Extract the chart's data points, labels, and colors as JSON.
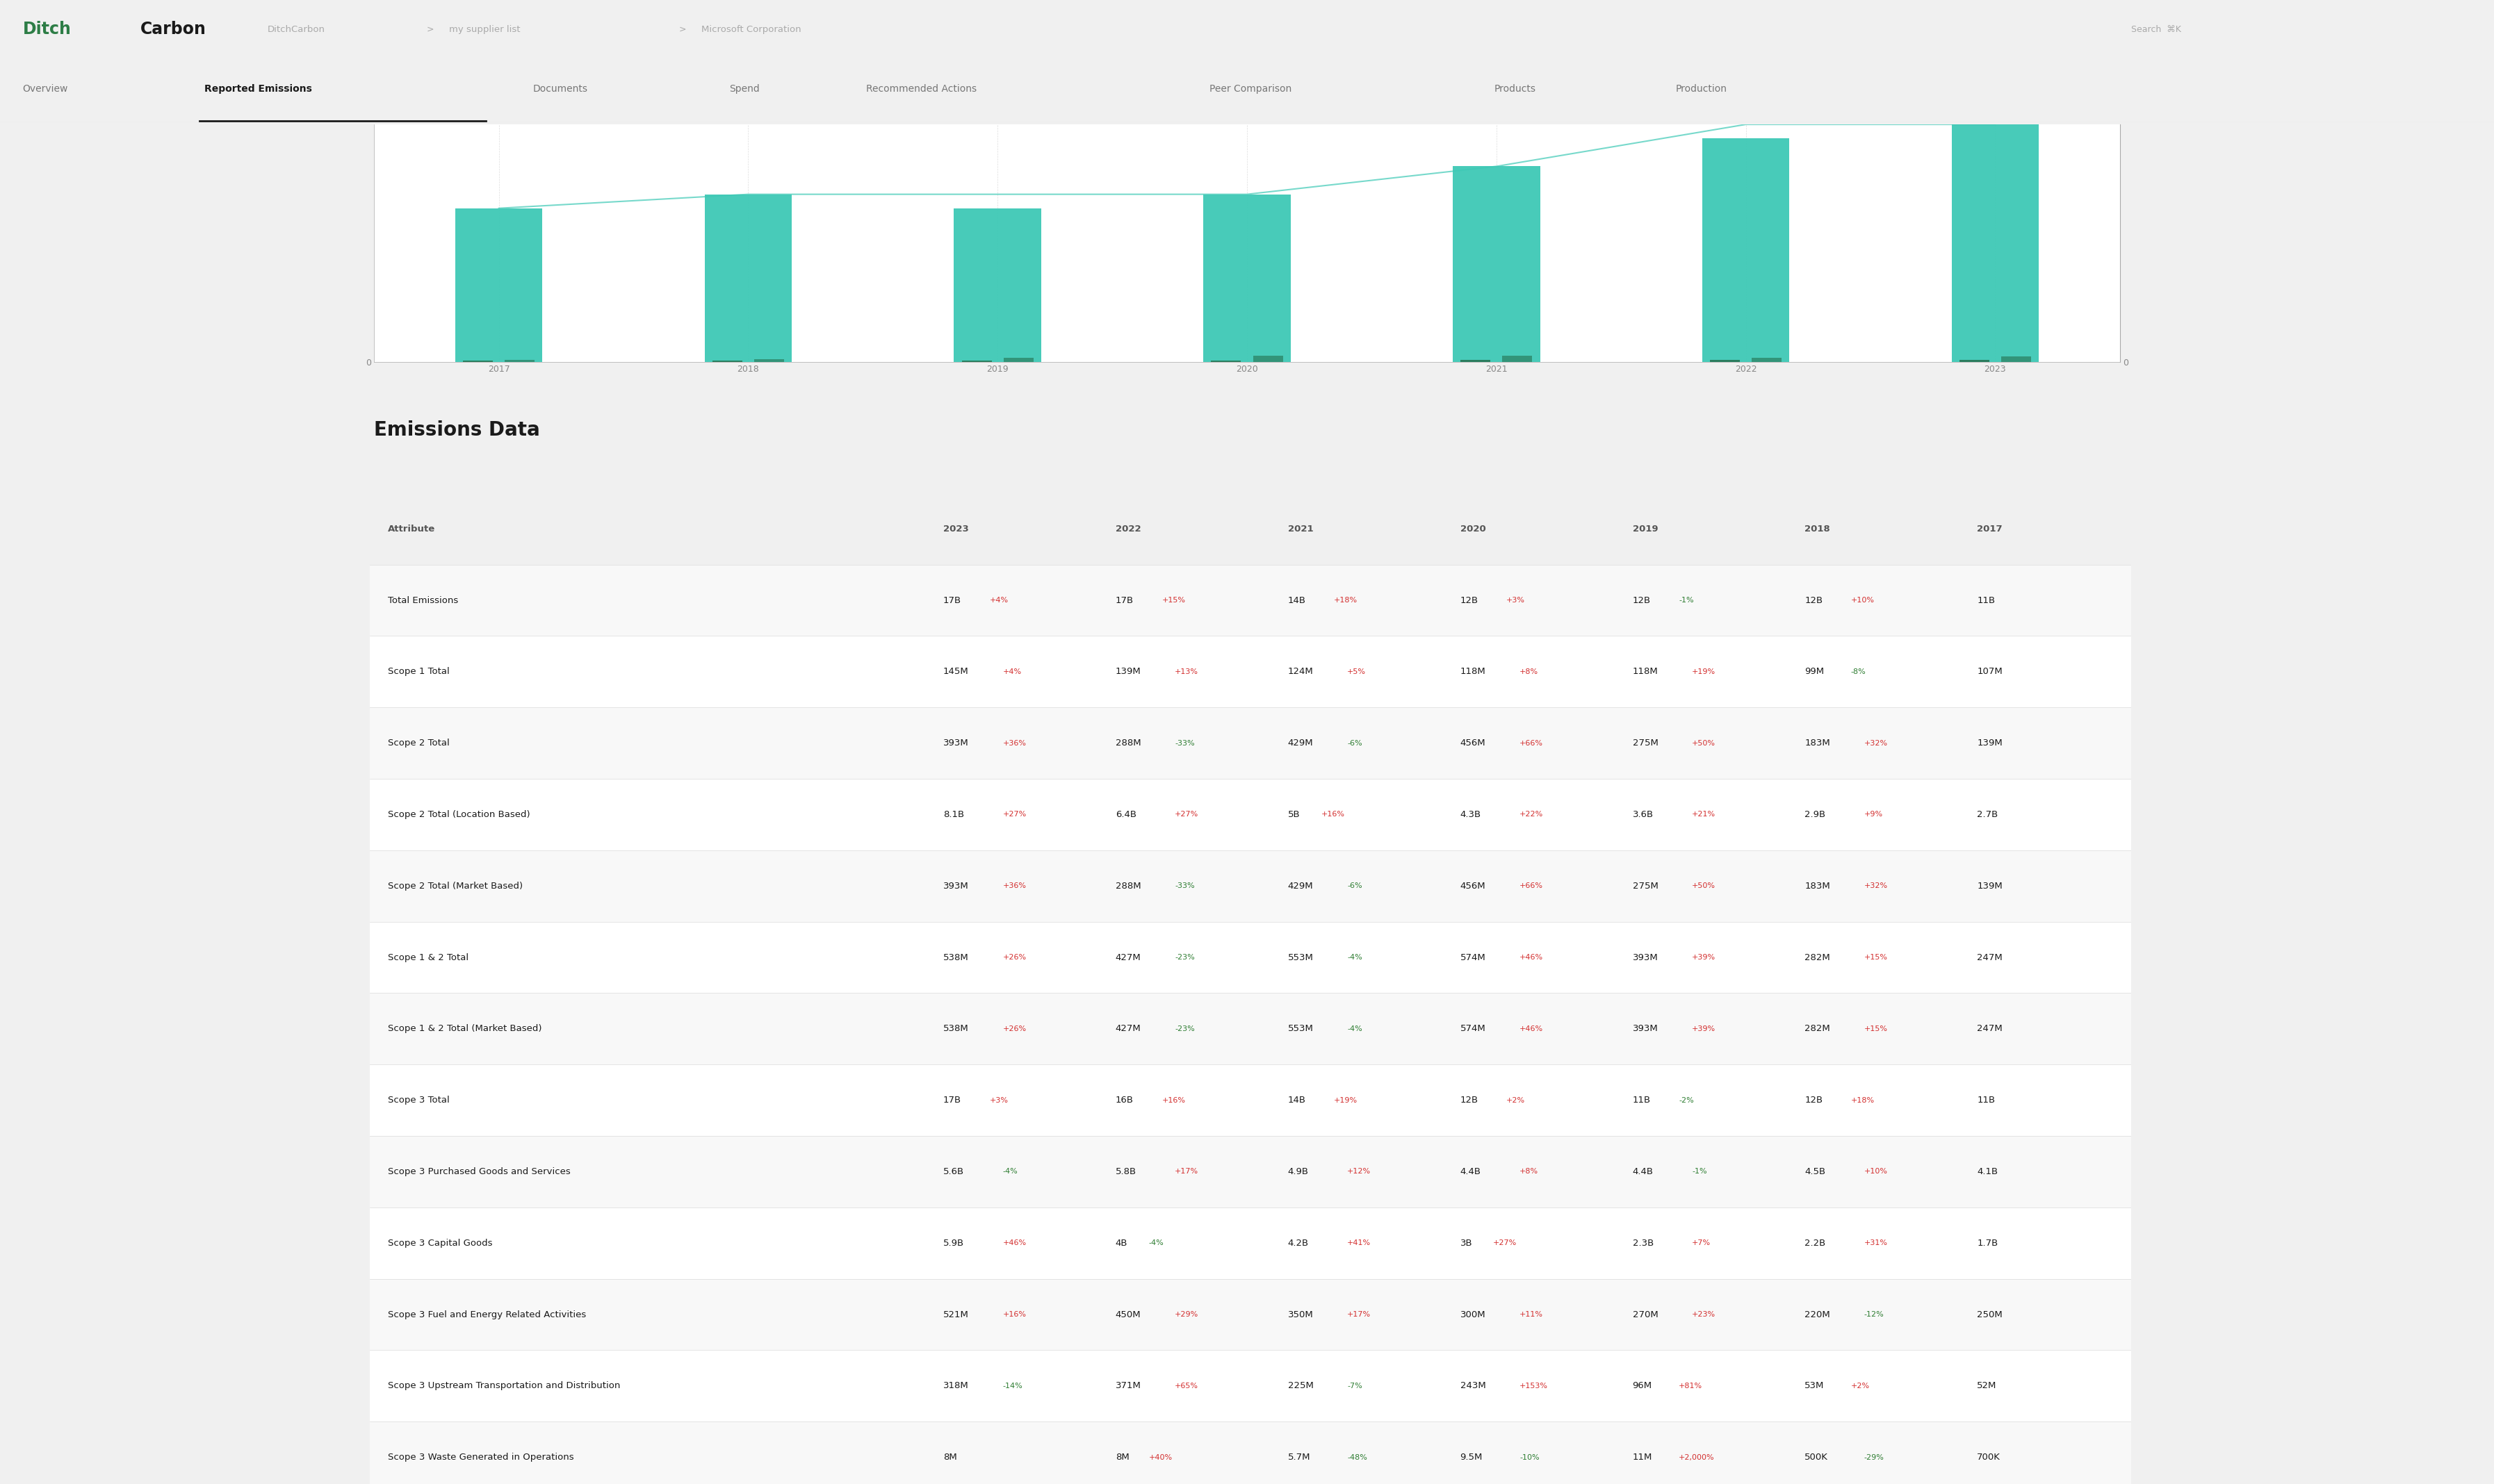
{
  "title": "Emissions Data",
  "nav_items": [
    "Overview",
    "Reported Emissions",
    "Documents",
    "Spend",
    "Recommended Actions",
    "Peer Comparison",
    "Products",
    "Production"
  ],
  "breadcrumb": [
    "DitchCarbon",
    "my supplier list",
    "Microsoft Corporation"
  ],
  "columns": [
    "Attribute",
    "2023",
    "2022",
    "2021",
    "2020",
    "2019",
    "2018",
    "2017"
  ],
  "rows": [
    {
      "attribute": "Total Emissions",
      "2023": "17B",
      "2023_delta": "+4%",
      "2023_pos": true,
      "2022": "17B",
      "2022_delta": "+15%",
      "2022_pos": true,
      "2021": "14B",
      "2021_delta": "+18%",
      "2021_pos": true,
      "2020": "12B",
      "2020_delta": "+3%",
      "2020_pos": true,
      "2019": "12B",
      "2019_delta": "-1%",
      "2019_pos": false,
      "2018": "12B",
      "2018_delta": "+10%",
      "2018_pos": true,
      "2017": "11B",
      "2017_delta": "",
      "2017_pos": null
    },
    {
      "attribute": "Scope 1 Total",
      "2023": "145M",
      "2023_delta": "+4%",
      "2023_pos": true,
      "2022": "139M",
      "2022_delta": "+13%",
      "2022_pos": true,
      "2021": "124M",
      "2021_delta": "+5%",
      "2021_pos": true,
      "2020": "118M",
      "2020_delta": "+8%",
      "2020_pos": true,
      "2019": "118M",
      "2019_delta": "+19%",
      "2019_pos": true,
      "2018": "99M",
      "2018_delta": "-8%",
      "2018_pos": false,
      "2017": "107M",
      "2017_delta": "",
      "2017_pos": null
    },
    {
      "attribute": "Scope 2 Total",
      "2023": "393M",
      "2023_delta": "+36%",
      "2023_pos": true,
      "2022": "288M",
      "2022_delta": "-33%",
      "2022_pos": false,
      "2021": "429M",
      "2021_delta": "-6%",
      "2021_pos": false,
      "2020": "456M",
      "2020_delta": "+66%",
      "2020_pos": true,
      "2019": "275M",
      "2019_delta": "+50%",
      "2019_pos": true,
      "2018": "183M",
      "2018_delta": "+32%",
      "2018_pos": true,
      "2017": "139M",
      "2017_delta": "",
      "2017_pos": null
    },
    {
      "attribute": "Scope 2 Total (Location Based)",
      "2023": "8.1B",
      "2023_delta": "+27%",
      "2023_pos": true,
      "2022": "6.4B",
      "2022_delta": "+27%",
      "2022_pos": true,
      "2021": "5B",
      "2021_delta": "+16%",
      "2021_pos": true,
      "2020": "4.3B",
      "2020_delta": "+22%",
      "2020_pos": true,
      "2019": "3.6B",
      "2019_delta": "+21%",
      "2019_pos": true,
      "2018": "2.9B",
      "2018_delta": "+9%",
      "2018_pos": true,
      "2017": "2.7B",
      "2017_delta": "",
      "2017_pos": null
    },
    {
      "attribute": "Scope 2 Total (Market Based)",
      "2023": "393M",
      "2023_delta": "+36%",
      "2023_pos": true,
      "2022": "288M",
      "2022_delta": "-33%",
      "2022_pos": false,
      "2021": "429M",
      "2021_delta": "-6%",
      "2021_pos": false,
      "2020": "456M",
      "2020_delta": "+66%",
      "2020_pos": true,
      "2019": "275M",
      "2019_delta": "+50%",
      "2019_pos": true,
      "2018": "183M",
      "2018_delta": "+32%",
      "2018_pos": true,
      "2017": "139M",
      "2017_delta": "",
      "2017_pos": null
    },
    {
      "attribute": "Scope 1 & 2 Total",
      "2023": "538M",
      "2023_delta": "+26%",
      "2023_pos": true,
      "2022": "427M",
      "2022_delta": "-23%",
      "2022_pos": false,
      "2021": "553M",
      "2021_delta": "-4%",
      "2021_pos": false,
      "2020": "574M",
      "2020_delta": "+46%",
      "2020_pos": true,
      "2019": "393M",
      "2019_delta": "+39%",
      "2019_pos": true,
      "2018": "282M",
      "2018_delta": "+15%",
      "2018_pos": true,
      "2017": "247M",
      "2017_delta": "",
      "2017_pos": null
    },
    {
      "attribute": "Scope 1 & 2 Total (Market Based)",
      "2023": "538M",
      "2023_delta": "+26%",
      "2023_pos": true,
      "2022": "427M",
      "2022_delta": "-23%",
      "2022_pos": false,
      "2021": "553M",
      "2021_delta": "-4%",
      "2021_pos": false,
      "2020": "574M",
      "2020_delta": "+46%",
      "2020_pos": true,
      "2019": "393M",
      "2019_delta": "+39%",
      "2019_pos": true,
      "2018": "282M",
      "2018_delta": "+15%",
      "2018_pos": true,
      "2017": "247M",
      "2017_delta": "",
      "2017_pos": null
    },
    {
      "attribute": "Scope 3 Total",
      "2023": "17B",
      "2023_delta": "+3%",
      "2023_pos": true,
      "2022": "16B",
      "2022_delta": "+16%",
      "2022_pos": true,
      "2021": "14B",
      "2021_delta": "+19%",
      "2021_pos": true,
      "2020": "12B",
      "2020_delta": "+2%",
      "2020_pos": true,
      "2019": "11B",
      "2019_delta": "-2%",
      "2019_pos": false,
      "2018": "12B",
      "2018_delta": "+18%",
      "2018_pos": true,
      "2017": "11B",
      "2017_delta": "",
      "2017_pos": null
    },
    {
      "attribute": "Scope 3 Purchased Goods and Services",
      "2023": "5.6B",
      "2023_delta": "-4%",
      "2023_pos": false,
      "2022": "5.8B",
      "2022_delta": "+17%",
      "2022_pos": true,
      "2021": "4.9B",
      "2021_delta": "+12%",
      "2021_pos": true,
      "2020": "4.4B",
      "2020_delta": "+8%",
      "2020_pos": true,
      "2019": "4.4B",
      "2019_delta": "-1%",
      "2019_pos": false,
      "2018": "4.5B",
      "2018_delta": "+10%",
      "2018_pos": true,
      "2017": "4.1B",
      "2017_delta": "",
      "2017_pos": null
    },
    {
      "attribute": "Scope 3 Capital Goods",
      "2023": "5.9B",
      "2023_delta": "+46%",
      "2023_pos": true,
      "2022": "4B",
      "2022_delta": "-4%",
      "2022_pos": false,
      "2021": "4.2B",
      "2021_delta": "+41%",
      "2021_pos": true,
      "2020": "3B",
      "2020_delta": "+27%",
      "2020_pos": true,
      "2019": "2.3B",
      "2019_delta": "+7%",
      "2019_pos": true,
      "2018": "2.2B",
      "2018_delta": "+31%",
      "2018_pos": true,
      "2017": "1.7B",
      "2017_delta": "",
      "2017_pos": null
    },
    {
      "attribute": "Scope 3 Fuel and Energy Related Activities",
      "2023": "521M",
      "2023_delta": "+16%",
      "2023_pos": true,
      "2022": "450M",
      "2022_delta": "+29%",
      "2022_pos": true,
      "2021": "350M",
      "2021_delta": "+17%",
      "2021_pos": true,
      "2020": "300M",
      "2020_delta": "+11%",
      "2020_pos": true,
      "2019": "270M",
      "2019_delta": "+23%",
      "2019_pos": true,
      "2018": "220M",
      "2018_delta": "-12%",
      "2018_pos": false,
      "2017": "250M",
      "2017_delta": "",
      "2017_pos": null
    },
    {
      "attribute": "Scope 3 Upstream Transportation and Distribution",
      "2023": "318M",
      "2023_delta": "-14%",
      "2023_pos": false,
      "2022": "371M",
      "2022_delta": "+65%",
      "2022_pos": true,
      "2021": "225M",
      "2021_delta": "-7%",
      "2021_pos": false,
      "2020": "243M",
      "2020_delta": "+153%",
      "2020_pos": true,
      "2019": "96M",
      "2019_delta": "+81%",
      "2019_pos": true,
      "2018": "53M",
      "2018_delta": "+2%",
      "2018_pos": true,
      "2017": "52M",
      "2017_delta": "",
      "2017_pos": null
    },
    {
      "attribute": "Scope 3 Waste Generated in Operations",
      "2023": "8M",
      "2023_delta": "",
      "2023_pos": null,
      "2022": "8M",
      "2022_delta": "+40%",
      "2022_pos": true,
      "2021": "5.7M",
      "2021_delta": "-48%",
      "2021_pos": false,
      "2020": "9.5M",
      "2020_delta": "-10%",
      "2020_pos": false,
      "2019": "11M",
      "2019_delta": "+2,000%",
      "2019_pos": true,
      "2018": "500K",
      "2018_delta": "-29%",
      "2018_pos": false,
      "2017": "700K",
      "2017_delta": "",
      "2017_pos": null
    }
  ],
  "bar_data": {
    "years": [
      2017,
      2018,
      2019,
      2020,
      2021,
      2022,
      2023
    ],
    "scope3_bar": [
      11000,
      12000,
      11000,
      12000,
      14000,
      16000,
      17000
    ],
    "scope1": [
      107,
      99,
      118,
      118,
      124,
      139,
      145
    ],
    "scope2": [
      139,
      183,
      275,
      456,
      429,
      288,
      393
    ],
    "line_values": [
      11000,
      12000,
      12000,
      12000,
      14000,
      17000,
      17000
    ]
  },
  "colors": {
    "bg_page": "#f0f0f0",
    "bg_white": "#ffffff",
    "border_light": "#e8e8e8",
    "border_table": "#e0e0e0",
    "text_dark": "#1a1a1a",
    "text_mid": "#555555",
    "text_gray": "#888888",
    "text_light": "#aaaaaa",
    "logo_green": "#2d7d46",
    "logo_black": "#1a1a1a",
    "nav_active": "#1a1a1a",
    "nav_inactive": "#777777",
    "nav_underline": "#1a1a1a",
    "positive_delta": "#d32f2f",
    "negative_delta": "#2e7d32",
    "bar_teal": "#3ec9b6",
    "bar_dark_green": "#2a7d5e",
    "line_teal": "#3ec9b6",
    "row_alt": "#f8f8f8"
  }
}
